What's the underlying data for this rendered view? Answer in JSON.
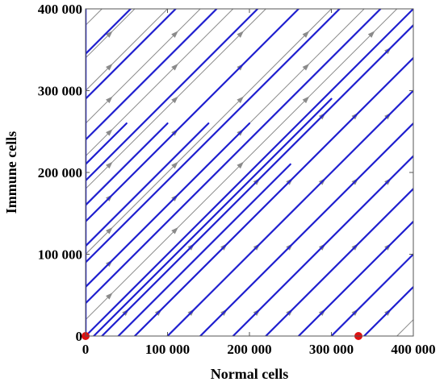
{
  "chart_data": {
    "type": "phase-portrait",
    "xlabel": "Normal cells",
    "ylabel": "Immune cells",
    "xlim": [
      0,
      400000
    ],
    "ylim": [
      0,
      400000
    ],
    "xticks": [
      0,
      100000,
      200000,
      300000,
      400000
    ],
    "yticks": [
      0,
      100000,
      200000,
      300000,
      400000
    ],
    "xtick_labels": [
      "0",
      "100 000",
      "200 000",
      "300 000",
      "400 000"
    ],
    "ytick_labels": [
      "0",
      "100 000",
      "200 000",
      "300 000",
      "400 000"
    ],
    "grid": false,
    "colors": {
      "trajectories": "#1f1fcf",
      "stream": "#8a8a8a",
      "equilibrium": "#e01010"
    },
    "stream_direction": [
      1,
      1
    ],
    "stream_intercepts": [
      -380000,
      -340000,
      -300000,
      -260000,
      -220000,
      -180000,
      -140000,
      -100000,
      -60000,
      -20000,
      20000,
      60000,
      100000,
      140000,
      180000,
      220000,
      260000,
      300000,
      340000,
      380000
    ],
    "trajectory_segments": [
      {
        "x": [
          0,
          400000
        ],
        "y": [
          0,
          400000
        ]
      },
      {
        "x": [
          0,
          360000
        ],
        "y": [
          40000,
          400000
        ]
      },
      {
        "x": [
          0,
          310000
        ],
        "y": [
          90000,
          400000
        ]
      },
      {
        "x": [
          0,
          260000
        ],
        "y": [
          140000,
          400000
        ]
      },
      {
        "x": [
          0,
          210000
        ],
        "y": [
          190000,
          400000
        ]
      },
      {
        "x": [
          0,
          160000
        ],
        "y": [
          240000,
          400000
        ]
      },
      {
        "x": [
          0,
          110000
        ],
        "y": [
          290000,
          400000
        ]
      },
      {
        "x": [
          0,
          55000
        ],
        "y": [
          345000,
          400000
        ]
      },
      {
        "x": [
          20000,
          400000
        ],
        "y": [
          0,
          380000
        ]
      },
      {
        "x": [
          60000,
          400000
        ],
        "y": [
          0,
          340000
        ]
      },
      {
        "x": [
          100000,
          400000
        ],
        "y": [
          0,
          300000
        ]
      },
      {
        "x": [
          140000,
          400000
        ],
        "y": [
          0,
          260000
        ]
      },
      {
        "x": [
          180000,
          400000
        ],
        "y": [
          0,
          220000
        ]
      },
      {
        "x": [
          220000,
          400000
        ],
        "y": [
          0,
          180000
        ]
      },
      {
        "x": [
          260000,
          400000
        ],
        "y": [
          0,
          140000
        ]
      },
      {
        "x": [
          300000,
          400000
        ],
        "y": [
          0,
          100000
        ]
      },
      {
        "x": [
          340000,
          400000
        ],
        "y": [
          0,
          60000
        ]
      },
      {
        "x": [
          10000,
          300000
        ],
        "y": [
          0,
          290000
        ]
      },
      {
        "x": [
          40000,
          250000
        ],
        "y": [
          0,
          210000
        ]
      },
      {
        "x": [
          0,
          200000
        ],
        "y": [
          60000,
          260000
        ]
      },
      {
        "x": [
          0,
          150000
        ],
        "y": [
          110000,
          260000
        ]
      },
      {
        "x": [
          0,
          100000
        ],
        "y": [
          160000,
          260000
        ]
      },
      {
        "x": [
          0,
          50000
        ],
        "y": [
          210000,
          260000
        ]
      }
    ],
    "equilibrium_points": [
      {
        "x": 333000,
        "y": 0
      },
      {
        "x": 0,
        "y": 0
      }
    ]
  }
}
